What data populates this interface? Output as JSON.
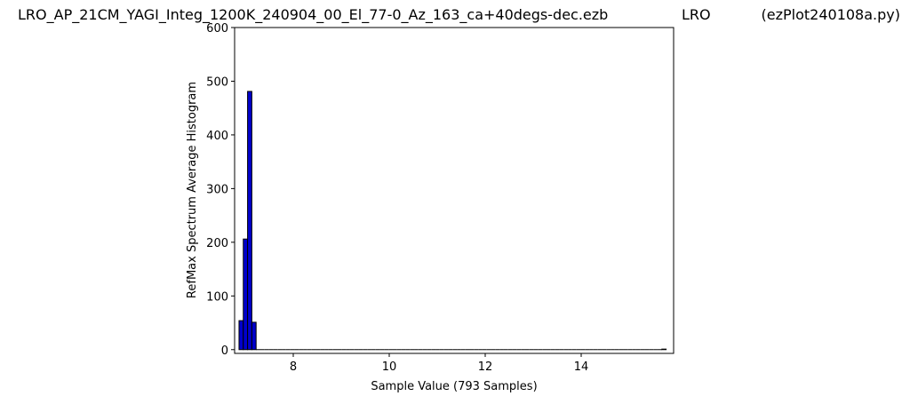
{
  "chart_data": {
    "type": "histogram",
    "title": "LRO_AP_21CM_YAGI_Integ_1200K_240904_00_El_77-0_Az_163_ca+40degs-dec.ezb",
    "title_center": "LRO",
    "title_right": "(ezPlot240108a.py)",
    "xlabel": "Sample Value (793 Samples)",
    "ylabel": "RefMax Spectrum Average Histogram",
    "bins": [
      6.87,
      6.959,
      7.048,
      7.137,
      7.226,
      7.315,
      7.404,
      7.493,
      7.582,
      7.671,
      7.76,
      7.849,
      7.938,
      8.027,
      8.116,
      8.205,
      8.294,
      8.383,
      8.472,
      8.561,
      8.65,
      8.739,
      8.828,
      8.917,
      9.006,
      9.095,
      9.184,
      9.273,
      9.362,
      9.451,
      9.54,
      9.629,
      9.718,
      9.807,
      9.896,
      9.985,
      10.074,
      10.163,
      10.252,
      10.341,
      10.43,
      10.519,
      10.608,
      10.697,
      10.786,
      10.875,
      10.964,
      11.053,
      11.142,
      11.231,
      11.32,
      11.409,
      11.498,
      11.587,
      11.676,
      11.765,
      11.854,
      11.943,
      12.032,
      12.121,
      12.21,
      12.299,
      12.388,
      12.477,
      12.566,
      12.655,
      12.744,
      12.833,
      12.922,
      13.011,
      13.1,
      13.189,
      13.278,
      13.367,
      13.456,
      13.545,
      13.634,
      13.723,
      13.812,
      13.901,
      13.99,
      14.079,
      14.168,
      14.257,
      14.346,
      14.435,
      14.524,
      14.613,
      14.702,
      14.791,
      14.88,
      14.969,
      15.058,
      15.147,
      15.236,
      15.325,
      15.414,
      15.503,
      15.592,
      15.681,
      15.77
    ],
    "values": [
      54,
      206,
      481,
      51,
      0,
      0,
      0,
      0,
      0,
      0,
      0,
      0,
      0,
      0,
      0,
      0,
      0,
      0,
      0,
      0,
      0,
      0,
      0,
      0,
      0,
      0,
      0,
      0,
      0,
      0,
      0,
      0,
      0,
      0,
      0,
      0,
      0,
      0,
      0,
      0,
      0,
      0,
      0,
      0,
      0,
      0,
      0,
      0,
      0,
      0,
      0,
      0,
      0,
      0,
      0,
      0,
      0,
      0,
      0,
      0,
      0,
      0,
      0,
      0,
      0,
      0,
      0,
      0,
      0,
      0,
      0,
      0,
      0,
      0,
      0,
      0,
      0,
      0,
      0,
      0,
      0,
      0,
      0,
      0,
      0,
      0,
      0,
      0,
      0,
      0,
      0,
      0,
      0,
      0,
      0,
      0,
      0,
      0,
      0,
      1
    ],
    "color": "#0000cc",
    "edgecolor": "#000000",
    "xlim": [
      6.778,
      15.926
    ],
    "ylim": [
      -7,
      600
    ],
    "xticks": [
      8,
      10,
      12,
      14
    ],
    "yticks": [
      0,
      100,
      200,
      300,
      400,
      500,
      600
    ]
  }
}
